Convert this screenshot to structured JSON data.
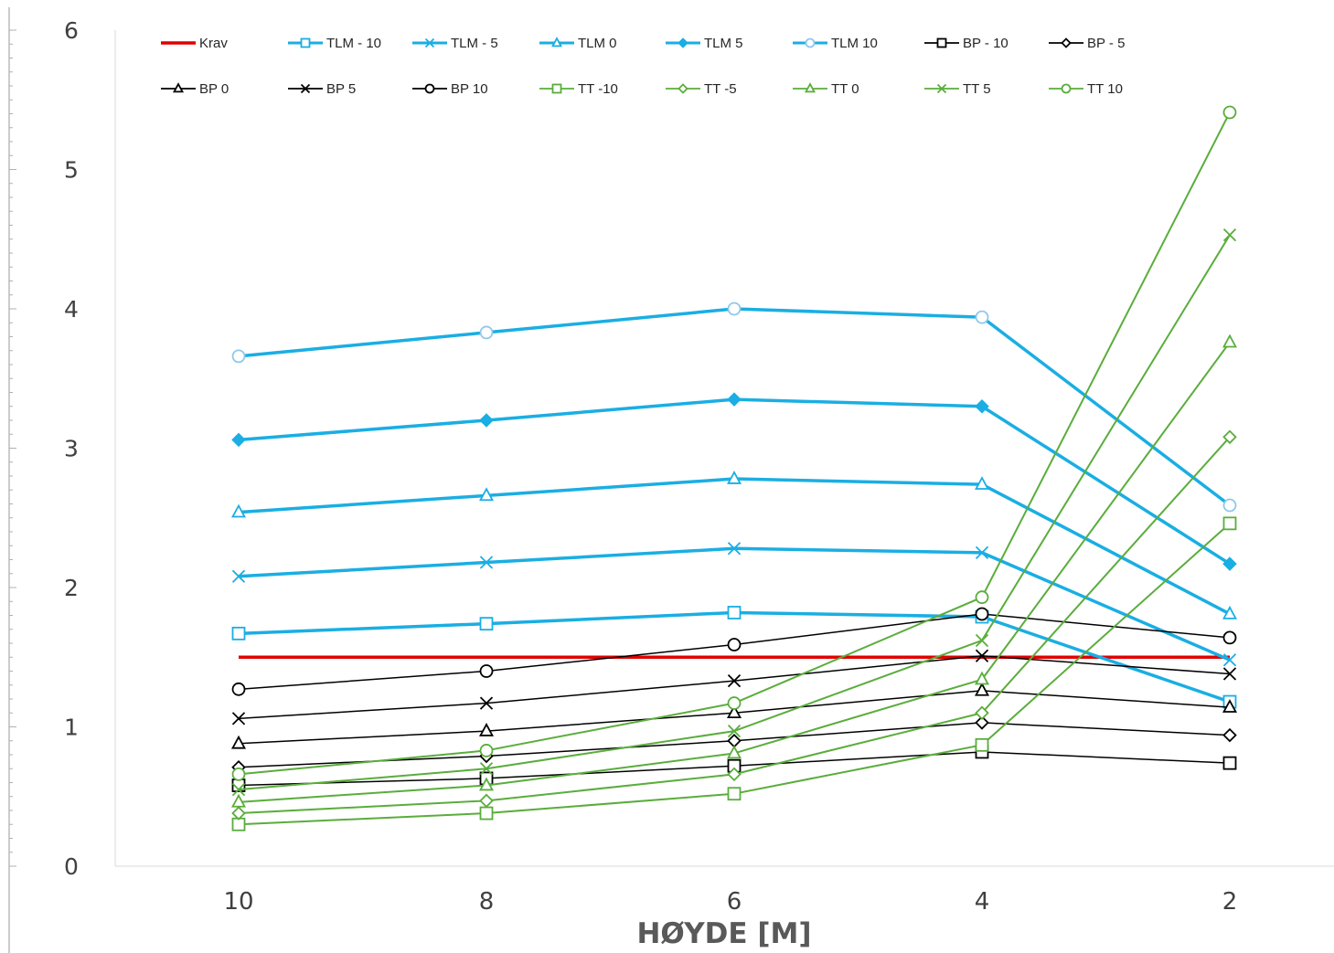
{
  "chart_data": {
    "type": "line",
    "title": "",
    "xlabel": "HØYDE [M]",
    "ylabel": "",
    "categories": [
      "10",
      "8",
      "6",
      "4",
      "2"
    ],
    "ylim": [
      0,
      6
    ],
    "yticks": [
      "0",
      "1",
      "2",
      "3",
      "4",
      "5",
      "6"
    ],
    "grid": false,
    "legend_position": "top",
    "series": [
      {
        "name": "Krav",
        "color": "#e00000",
        "marker": "none",
        "width": 3.5,
        "values": [
          1.5,
          1.5,
          1.5,
          1.5,
          1.5
        ]
      },
      {
        "name": "TLM - 10",
        "color": "#1aaee3",
        "marker": "square-open",
        "width": 3.5,
        "values": [
          1.67,
          1.74,
          1.82,
          1.79,
          1.18
        ]
      },
      {
        "name": "TLM - 5",
        "color": "#1aaee3",
        "marker": "x",
        "width": 3.5,
        "values": [
          2.08,
          2.18,
          2.28,
          2.25,
          1.48
        ]
      },
      {
        "name": "TLM 0",
        "color": "#1aaee3",
        "marker": "triangle-open",
        "width": 3.5,
        "values": [
          2.54,
          2.66,
          2.78,
          2.74,
          1.81
        ]
      },
      {
        "name": "TLM 5",
        "color": "#1aaee3",
        "marker": "diamond-filled",
        "width": 3.5,
        "values": [
          3.06,
          3.2,
          3.35,
          3.3,
          2.17
        ]
      },
      {
        "name": "TLM 10",
        "color": "#1aaee3",
        "marker": "circle-open",
        "width": 3.5,
        "values": [
          3.66,
          3.83,
          4.0,
          3.94,
          2.59
        ]
      },
      {
        "name": "BP - 10",
        "color": "#000000",
        "marker": "square-open",
        "width": 1.5,
        "values": [
          0.58,
          0.63,
          0.72,
          0.82,
          0.74
        ]
      },
      {
        "name": "BP - 5",
        "color": "#000000",
        "marker": "diamond-open",
        "width": 1.5,
        "values": [
          0.71,
          0.79,
          0.9,
          1.03,
          0.94
        ]
      },
      {
        "name": "BP 0",
        "color": "#000000",
        "marker": "triangle-open",
        "width": 1.5,
        "values": [
          0.88,
          0.97,
          1.1,
          1.26,
          1.14
        ]
      },
      {
        "name": "BP 5",
        "color": "#000000",
        "marker": "x",
        "width": 1.5,
        "values": [
          1.06,
          1.17,
          1.33,
          1.51,
          1.38
        ]
      },
      {
        "name": "BP 10",
        "color": "#000000",
        "marker": "circle-open",
        "width": 1.5,
        "values": [
          1.27,
          1.4,
          1.59,
          1.81,
          1.64
        ]
      },
      {
        "name": "TT -10",
        "color": "#5aad3c",
        "marker": "square-open",
        "width": 2,
        "values": [
          0.3,
          0.38,
          0.52,
          0.87,
          2.46
        ]
      },
      {
        "name": "TT -5",
        "color": "#5aad3c",
        "marker": "diamond-open",
        "width": 2,
        "values": [
          0.38,
          0.47,
          0.66,
          1.1,
          3.08
        ]
      },
      {
        "name": "TT 0",
        "color": "#5aad3c",
        "marker": "triangle-open",
        "width": 2,
        "values": [
          0.46,
          0.58,
          0.81,
          1.34,
          3.76
        ]
      },
      {
        "name": "TT 5",
        "color": "#5aad3c",
        "marker": "x",
        "width": 2,
        "values": [
          0.55,
          0.7,
          0.97,
          1.62,
          4.53
        ]
      },
      {
        "name": "TT 10",
        "color": "#5aad3c",
        "marker": "circle-open",
        "width": 2,
        "values": [
          0.66,
          0.83,
          1.17,
          1.93,
          5.41
        ]
      }
    ]
  }
}
